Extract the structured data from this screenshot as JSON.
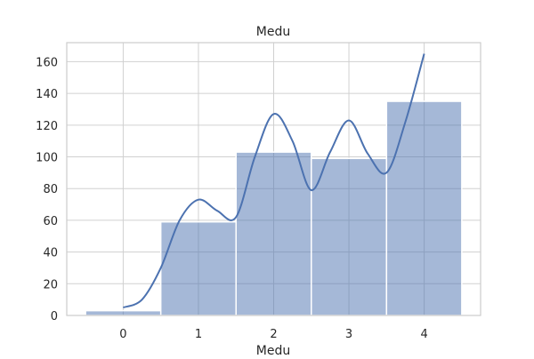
{
  "chart_data": {
    "type": "bar",
    "title": "Medu",
    "xlabel": "Medu",
    "ylabel": "",
    "categories": [
      "0",
      "1",
      "2",
      "3",
      "4"
    ],
    "values": [
      3,
      59,
      103,
      99,
      135
    ],
    "ylim": [
      0,
      172
    ],
    "xlim": [
      -0.75,
      4.75
    ],
    "yticks": [
      0,
      20,
      40,
      60,
      80,
      100,
      120,
      140,
      160
    ],
    "grid": true,
    "legend": "none",
    "kde_line": {
      "x": [
        0,
        0.25,
        0.5,
        0.75,
        1,
        1.25,
        1.5,
        1.75,
        2,
        2.25,
        2.5,
        2.75,
        3,
        3.25,
        3.5,
        3.75,
        4
      ],
      "y": [
        5,
        10,
        30,
        60,
        73,
        66,
        62,
        100,
        127,
        110,
        79,
        103,
        123,
        102,
        90,
        122,
        165
      ]
    },
    "colors": {
      "bar_fill": "#4c72b0",
      "bar_opacity": 0.5,
      "line": "#4c72b0",
      "grid": "#d0d0d0"
    }
  }
}
